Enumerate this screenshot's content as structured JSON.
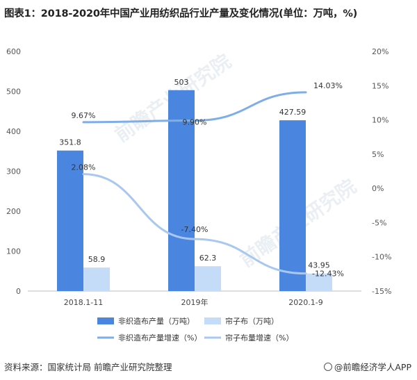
{
  "title": "图表1：2018-2020年中国产业用纺织品行业产量及变化情况(单位：万吨，%)",
  "source": "资料来源：国家统计局 前瞻产业研究院整理",
  "brand": "@前瞻经济学人APP",
  "watermark": "前瞻产业研究院",
  "chart_data": {
    "type": "bar",
    "categories": [
      "2018.1-11",
      "2019年",
      "2020.1-9"
    ],
    "left_axis": {
      "ylim": [
        0,
        600
      ],
      "ticks": [
        0,
        100,
        200,
        300,
        400,
        500,
        600
      ]
    },
    "right_axis": {
      "ylim": [
        -15,
        20
      ],
      "ticks": [
        "-15%",
        "-10%",
        "-5%",
        "0%",
        "5%",
        "10%",
        "15%",
        "20%"
      ],
      "tick_values": [
        -15,
        -10,
        -5,
        0,
        5,
        10,
        15,
        20
      ]
    },
    "bar_series": [
      {
        "name": "非织造布产量（万吨）",
        "color": "#4a86e0",
        "values": [
          351.8,
          503,
          427.59
        ],
        "labels": [
          "351.8",
          "503",
          "427.59"
        ]
      },
      {
        "name": "帘子布（万吨）",
        "color": "#c5dcf8",
        "values": [
          58.9,
          62.3,
          43.95
        ],
        "labels": [
          "58.9",
          "62.3",
          "43.95"
        ]
      }
    ],
    "line_series": [
      {
        "name": "非织造布产量增速（%）",
        "color": "#7eaee8",
        "values": [
          9.67,
          9.9,
          14.03
        ],
        "labels": [
          "9.67%",
          "9.90%",
          "14.03%"
        ]
      },
      {
        "name": "帘子布量增速（%）",
        "color": "#a9c8f0",
        "values": [
          2.08,
          -7.4,
          -12.43
        ],
        "labels": [
          "2.08%",
          "-7.40%",
          "-12.43%"
        ]
      }
    ],
    "legend_position": "bottom"
  }
}
